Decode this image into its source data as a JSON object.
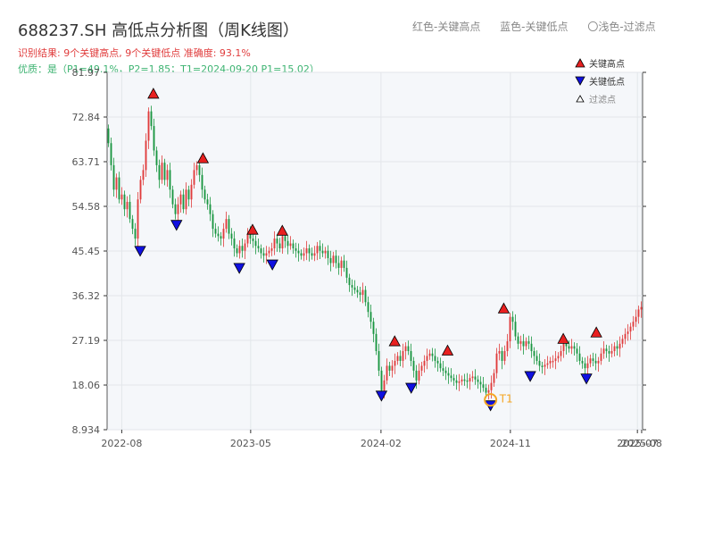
{
  "title": "688237.SH 高低点分析图（周K线图）",
  "legend_top": {
    "red": "红色-关键高点",
    "blue": "蓝色-关键低点",
    "filtered": "〇浅色-过滤点"
  },
  "subtitle_result": "识别结果: 9个关键高点, 9个关键低点   准确度: 93.1%",
  "subtitle_quality": "优质：是（P1=49.1%，P2=1.85；T1=2024-09-20 P1=15.02）",
  "legend_in_plot": {
    "high": "关键高点",
    "low": "关键低点",
    "filtered": "过滤点"
  },
  "t1_label": "T1",
  "colors": {
    "up": "#e03c3c",
    "down": "#1a9641",
    "high_marker": "#e82020",
    "low_marker": "#1010e0",
    "t1_marker": "#f5a623",
    "plot_bg": "#f5f7fa",
    "grid": "#e3e6ea"
  },
  "chart_data": {
    "type": "candlestick",
    "y_ticks": [
      "8.934",
      "18.06",
      "27.19",
      "36.32",
      "45.45",
      "54.58",
      "63.71",
      "72.84",
      "81.97"
    ],
    "ylim": [
      8.934,
      81.97
    ],
    "x_ticks": [
      "2022-08",
      "2023-05",
      "2024-02",
      "2024-11",
      "2025-07",
      "2025-08"
    ],
    "xlim": [
      "2022-07-01",
      "2025-08-08"
    ],
    "closes": [
      67.5,
      63.0,
      58.0,
      60.5,
      56.0,
      57.0,
      54.0,
      55.5,
      52.0,
      50.0,
      48.0,
      56.0,
      60.0,
      62.0,
      68.0,
      74.0,
      71.0,
      66.0,
      63.0,
      60.0,
      63.5,
      60.0,
      62.0,
      58.0,
      55.0,
      53.0,
      55.0,
      57.0,
      54.0,
      58.0,
      56.0,
      59.0,
      62.0,
      63.0,
      61.0,
      58.0,
      56.0,
      55.0,
      53.0,
      50.0,
      49.0,
      48.5,
      48.0,
      50.0,
      52.0,
      49.0,
      48.0,
      46.0,
      45.0,
      46.5,
      45.5,
      47.0,
      49.0,
      48.0,
      47.5,
      46.5,
      46.0,
      45.0,
      44.5,
      45.0,
      45.5,
      46.0,
      48.0,
      47.0,
      46.0,
      48.5,
      47.5,
      46.5,
      47.0,
      46.0,
      45.5,
      45.0,
      44.5,
      45.0,
      46.0,
      45.0,
      44.5,
      45.0,
      46.5,
      45.5,
      45.0,
      45.5,
      44.0,
      43.0,
      44.5,
      43.0,
      42.0,
      43.5,
      42.0,
      40.0,
      38.5,
      38.0,
      37.5,
      37.0,
      36.5,
      37.5,
      35.0,
      33.0,
      31.0,
      28.5,
      25.0,
      21.0,
      17.0,
      19.0,
      22.0,
      21.0,
      22.0,
      23.0,
      24.0,
      23.0,
      25.0,
      26.0,
      25.0,
      23.0,
      21.0,
      19.0,
      21.0,
      22.0,
      23.0,
      24.0,
      24.5,
      24.0,
      23.0,
      22.5,
      21.5,
      21.0,
      20.5,
      20.0,
      19.5,
      19.0,
      18.5,
      18.8,
      19.2,
      19.0,
      18.8,
      19.5,
      19.8,
      19.2,
      18.7,
      18.2,
      17.5,
      16.5,
      17.0,
      18.5,
      20.5,
      24.5,
      25.0,
      23.0,
      25.0,
      27.0,
      32.0,
      31.0,
      28.0,
      26.5,
      27.0,
      26.0,
      27.0,
      26.5,
      25.0,
      24.0,
      23.0,
      22.0,
      21.8,
      22.2,
      22.5,
      23.0,
      23.0,
      23.5,
      24.0,
      25.0,
      26.5,
      26.0,
      25.5,
      26.0,
      25.5,
      24.5,
      23.0,
      22.5,
      21.5,
      22.5,
      23.5,
      23.0,
      22.5,
      23.0,
      24.5,
      25.5,
      25.0,
      24.5,
      25.0,
      26.0,
      25.5,
      26.5,
      27.5,
      28.5,
      29.0,
      30.0,
      31.0,
      32.0,
      33.5,
      34.0
    ],
    "key_highs": [
      {
        "date": "2022-10-07",
        "value": 76.5
      },
      {
        "date": "2023-01-20",
        "value": 63.3
      },
      {
        "date": "2023-05-05",
        "value": 48.7
      },
      {
        "date": "2023-07-07",
        "value": 48.5
      },
      {
        "date": "2024-03-01",
        "value": 25.9
      },
      {
        "date": "2024-06-21",
        "value": 24.0
      },
      {
        "date": "2024-10-18",
        "value": 32.6
      },
      {
        "date": "2025-02-21",
        "value": 26.4
      },
      {
        "date": "2025-05-02",
        "value": 27.7
      }
    ],
    "key_lows": [
      {
        "date": "2022-09-09",
        "value": 46.6
      },
      {
        "date": "2022-11-25",
        "value": 51.9
      },
      {
        "date": "2023-04-07",
        "value": 43.1
      },
      {
        "date": "2023-06-16",
        "value": 43.8
      },
      {
        "date": "2024-02-02",
        "value": 17.0
      },
      {
        "date": "2024-04-05",
        "value": 18.6
      },
      {
        "date": "2024-09-20",
        "value": 15.02
      },
      {
        "date": "2024-12-13",
        "value": 21.0
      },
      {
        "date": "2025-04-11",
        "value": 20.5
      }
    ],
    "t1": {
      "date": "2024-09-20",
      "value": 15.02
    }
  }
}
